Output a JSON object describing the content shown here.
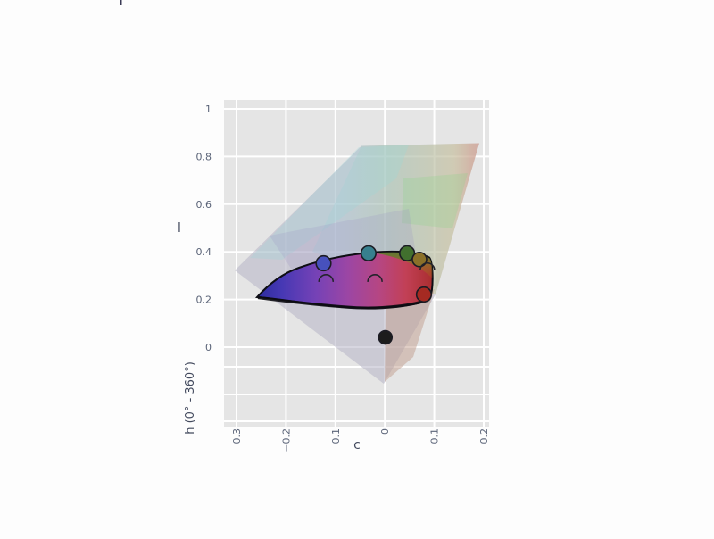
{
  "figure": {
    "clipped_title_fragment_visible": true,
    "panel_bg": "#e5e5e5",
    "grid_color": "#ffffff",
    "tick_color": "#5b6478",
    "axis_title_color": "#434a5e",
    "axes": {
      "x": {
        "title": "c",
        "tick_labels": [
          "−0.3",
          "−0.2",
          "−0.1",
          "0",
          "0.1",
          "0.2"
        ],
        "tick_values": [
          -0.3,
          -0.2,
          -0.1,
          0,
          0.1,
          0.2
        ]
      },
      "y": {
        "title": "l",
        "tick_labels": [
          "1",
          "0.8",
          "0.6",
          "0.4",
          "0.2",
          "0"
        ],
        "tick_values": [
          1,
          0.8,
          0.6,
          0.4,
          0.2,
          0
        ]
      },
      "z": {
        "title": "h (0° - 360°)"
      }
    }
  },
  "chart_data": {
    "type": "scatter",
    "projection": "3d-scene-near-frontal",
    "title": "",
    "xlabel": "c",
    "ylabel": "l",
    "zlabel": "h (0° - 360°)",
    "xlim": [
      -0.3,
      0.2
    ],
    "ylim": [
      0,
      1
    ],
    "grid": true,
    "legend": "none",
    "series": [
      {
        "name": "color-sample-markers",
        "type": "scatter3d-markers",
        "points": [
          {
            "c": -0.124,
            "l": 0.352,
            "marker_color": "#4751bd",
            "r": 8.3,
            "occluded": false
          },
          {
            "c": -0.033,
            "l": 0.394,
            "marker_color": "#37808e",
            "r": 8.3,
            "occluded": false
          },
          {
            "c": 0.045,
            "l": 0.394,
            "marker_color": "#41702e",
            "r": 8.3,
            "occluded": false
          },
          {
            "c": 0.07,
            "l": 0.368,
            "marker_color": "#8a7029",
            "r": 8.0,
            "occluded": false
          },
          {
            "c": 0.086,
            "l": 0.323,
            "marker_color": null,
            "r": 8.0,
            "occluded": true
          },
          {
            "c": 0.079,
            "l": 0.221,
            "marker_color": "#a52a22",
            "r": 8.3,
            "occluded": false
          },
          {
            "c": -0.119,
            "l": 0.274,
            "marker_color": null,
            "r": 8.0,
            "occluded": true
          },
          {
            "c": -0.02,
            "l": 0.274,
            "marker_color": null,
            "r": 8.0,
            "occluded": true
          },
          {
            "c": 0.001,
            "l": 0.041,
            "marker_color": "#1c1c1c",
            "r": 7.5,
            "occluded": false
          }
        ]
      },
      {
        "name": "gamut-volume-mesh",
        "type": "mesh3d",
        "description": "translucent gray-lavender color-space cone with pale cyan/green/yellow/salmon upper sheet"
      },
      {
        "name": "gamut-slice-surface",
        "type": "surface",
        "description": "solid gamut slice colored blue to purple to magenta to red, green-olive-orange corner at top right, dark outline"
      }
    ]
  }
}
